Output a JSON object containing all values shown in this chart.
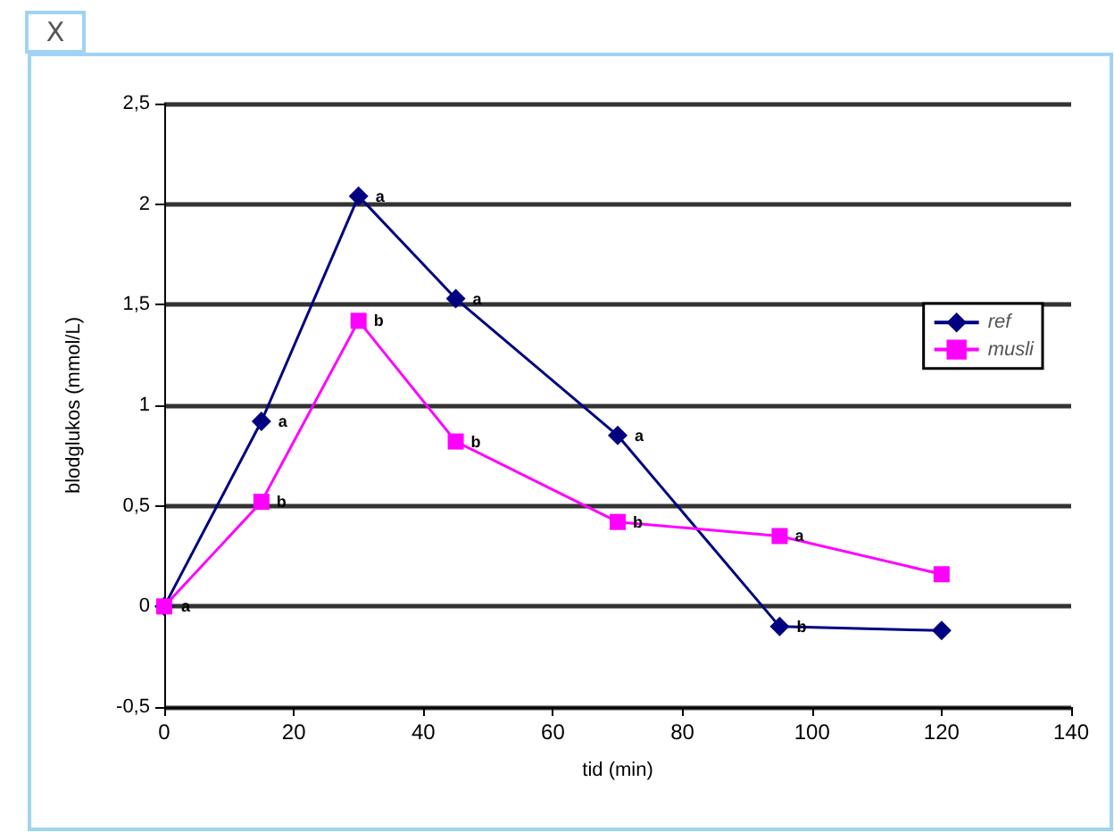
{
  "chart_data": {
    "type": "line",
    "xlabel": "tid (min)",
    "ylabel": "blodglukos (mmol/L)",
    "x": [
      0,
      15,
      30,
      45,
      70,
      95,
      120
    ],
    "series": [
      {
        "name": "ref",
        "color": "#000080",
        "marker": "diamond",
        "values": [
          0,
          0.92,
          2.04,
          1.53,
          0.85,
          -0.1,
          -0.12
        ],
        "value_labels": [
          "a",
          "a",
          "a",
          "a",
          "a",
          "b",
          null
        ]
      },
      {
        "name": "musli",
        "color": "#ff00ff",
        "marker": "square",
        "values": [
          0,
          0.52,
          1.42,
          0.82,
          0.42,
          0.35,
          0.16
        ],
        "value_labels": [
          null,
          "b",
          "b",
          "b",
          "b",
          "a",
          null
        ]
      }
    ],
    "xlim": [
      0,
      140
    ],
    "xticks": [
      0,
      20,
      40,
      60,
      80,
      100,
      120,
      140
    ],
    "ylim": [
      -0.5,
      2.5
    ],
    "yticks": [
      {
        "value": -0.5,
        "label": "-0,5"
      },
      {
        "value": 0,
        "label": "0"
      },
      {
        "value": 0.5,
        "label": "0,5"
      },
      {
        "value": 1,
        "label": "1"
      },
      {
        "value": 1.5,
        "label": "1,5"
      },
      {
        "value": 2,
        "label": "2"
      },
      {
        "value": 2.5,
        "label": "2,5"
      }
    ],
    "grid": "y",
    "legend": "right",
    "annotations": [
      "X"
    ]
  }
}
